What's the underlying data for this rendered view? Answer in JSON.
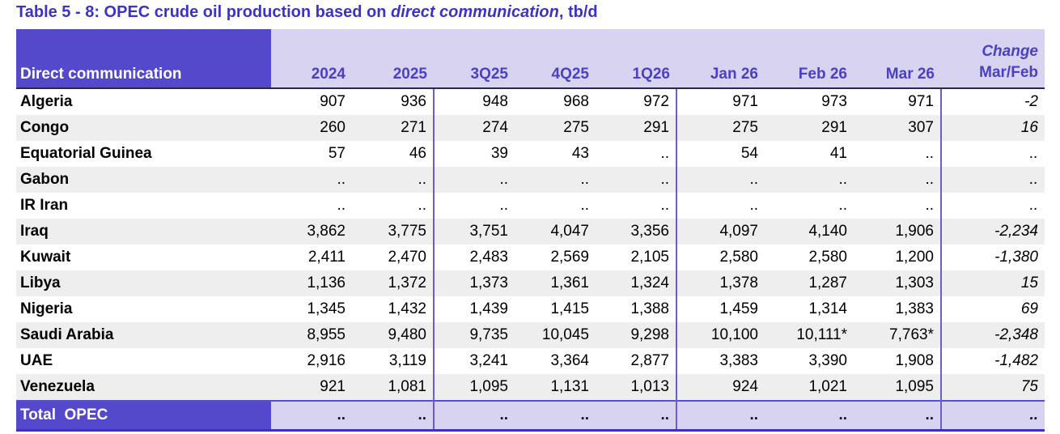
{
  "title": {
    "prefix": "Table 5 - 8: OPEC crude oil production based on ",
    "italic": "direct communication",
    "suffix": ", tb/d"
  },
  "table": {
    "label_header": "Direct communication",
    "columns": [
      "2024",
      "2025",
      "3Q25",
      "4Q25",
      "1Q26",
      "Jan 26",
      "Feb 26",
      "Mar 26"
    ],
    "change_header": {
      "line1": "Change",
      "line2": "Mar/Feb"
    },
    "rows": [
      {
        "country": "Algeria",
        "values": [
          "907",
          "936",
          "948",
          "968",
          "972",
          "971",
          "973",
          "971"
        ],
        "change": "-2"
      },
      {
        "country": "Congo",
        "values": [
          "260",
          "271",
          "274",
          "275",
          "291",
          "275",
          "291",
          "307"
        ],
        "change": "16"
      },
      {
        "country": "Equatorial Guinea",
        "values": [
          "57",
          "46",
          "39",
          "43",
          "..",
          "54",
          "41",
          ".."
        ],
        "change": ".."
      },
      {
        "country": "Gabon",
        "values": [
          "..",
          "..",
          "..",
          "..",
          "..",
          "..",
          "..",
          ".."
        ],
        "change": ".."
      },
      {
        "country": "IR Iran",
        "values": [
          "..",
          "..",
          "..",
          "..",
          "..",
          "..",
          "..",
          ".."
        ],
        "change": ".."
      },
      {
        "country": "Iraq",
        "values": [
          "3,862",
          "3,775",
          "3,751",
          "4,047",
          "3,356",
          "4,097",
          "4,140",
          "1,906"
        ],
        "change": "-2,234"
      },
      {
        "country": "Kuwait",
        "values": [
          "2,411",
          "2,470",
          "2,483",
          "2,569",
          "2,105",
          "2,580",
          "2,580",
          "1,200"
        ],
        "change": "-1,380"
      },
      {
        "country": "Libya",
        "values": [
          "1,136",
          "1,372",
          "1,373",
          "1,361",
          "1,324",
          "1,378",
          "1,287",
          "1,303"
        ],
        "change": "15"
      },
      {
        "country": "Nigeria",
        "values": [
          "1,345",
          "1,432",
          "1,439",
          "1,415",
          "1,388",
          "1,459",
          "1,314",
          "1,383"
        ],
        "change": "69"
      },
      {
        "country": "Saudi Arabia",
        "values": [
          "8,955",
          "9,480",
          "9,735",
          "10,045",
          "9,298",
          "10,100",
          "10,111*",
          "7,763*"
        ],
        "change": "-2,348"
      },
      {
        "country": "UAE",
        "values": [
          "2,916",
          "3,119",
          "3,241",
          "3,364",
          "2,877",
          "3,383",
          "3,390",
          "1,908"
        ],
        "change": "-1,482"
      },
      {
        "country": "Venezuela",
        "values": [
          "921",
          "1,081",
          "1,095",
          "1,131",
          "1,013",
          "924",
          "1,021",
          "1,095"
        ],
        "change": "75"
      }
    ],
    "total": {
      "label": "Total  OPEC",
      "values": [
        "..",
        "..",
        "..",
        "..",
        "..",
        "..",
        "..",
        ".."
      ],
      "change": ".."
    }
  },
  "colors": {
    "accent_purple": "#5449cb",
    "header_band": "#d8d3f0",
    "header_text": "#4a40c4",
    "title_text": "#3b32c6",
    "row_stripe": "#eeeeee",
    "column_separator": "#6a5ecf",
    "total_bottom_border": "#3d33bb"
  }
}
